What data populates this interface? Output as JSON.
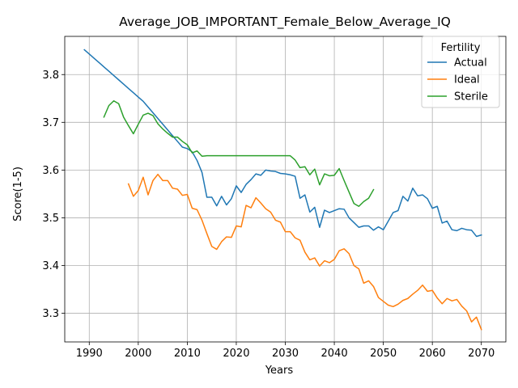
{
  "chart_data": {
    "type": "line",
    "title": "Average_JOB_IMPORTANT_Female_Below_Average_IQ",
    "xlabel": "Years",
    "ylabel": "Score(1-5)",
    "xlim": [
      1985,
      2075
    ],
    "ylim": [
      3.24,
      3.88
    ],
    "xticks": [
      1990,
      2000,
      2010,
      2020,
      2030,
      2040,
      2050,
      2060,
      2070
    ],
    "yticks": [
      3.3,
      3.4,
      3.5,
      3.6,
      3.7,
      3.8
    ],
    "ytick_labels": [
      "3.3",
      "3.4",
      "3.5",
      "3.6",
      "3.7",
      "3.8"
    ],
    "grid": true,
    "legend": {
      "title": "Fertility",
      "placement": "top-right"
    },
    "series": [
      {
        "name": "Actual",
        "color": "#1f77b4",
        "points": [
          [
            1989,
            3.852
          ],
          [
            1990,
            3.843
          ],
          [
            1991,
            3.834
          ],
          [
            1992,
            3.825
          ],
          [
            1993,
            3.816
          ],
          [
            1994,
            3.807
          ],
          [
            1995,
            3.798
          ],
          [
            1996,
            3.789
          ],
          [
            1997,
            3.78
          ],
          [
            1998,
            3.771
          ],
          [
            1999,
            3.762
          ],
          [
            2000,
            3.753
          ],
          [
            2001,
            3.744
          ],
          [
            2002,
            3.732
          ],
          [
            2003,
            3.72
          ],
          [
            2004,
            3.708
          ],
          [
            2005,
            3.696
          ],
          [
            2006,
            3.684
          ],
          [
            2007,
            3.672
          ],
          [
            2008,
            3.66
          ],
          [
            2009,
            3.648
          ],
          [
            2010,
            3.645
          ],
          [
            2011,
            3.638
          ],
          [
            2012,
            3.62
          ],
          [
            2013,
            3.595
          ],
          [
            2014,
            3.543
          ],
          [
            2015,
            3.543
          ],
          [
            2016,
            3.525
          ],
          [
            2017,
            3.545
          ],
          [
            2018,
            3.527
          ],
          [
            2019,
            3.54
          ],
          [
            2020,
            3.567
          ],
          [
            2021,
            3.553
          ],
          [
            2022,
            3.57
          ],
          [
            2023,
            3.58
          ],
          [
            2024,
            3.592
          ],
          [
            2025,
            3.589
          ],
          [
            2026,
            3.6
          ],
          [
            2027,
            3.598
          ],
          [
            2028,
            3.597
          ],
          [
            2029,
            3.593
          ],
          [
            2030,
            3.592
          ],
          [
            2031,
            3.59
          ],
          [
            2032,
            3.587
          ],
          [
            2033,
            3.541
          ],
          [
            2034,
            3.548
          ],
          [
            2035,
            3.512
          ],
          [
            2036,
            3.522
          ],
          [
            2037,
            3.48
          ],
          [
            2038,
            3.516
          ],
          [
            2039,
            3.511
          ],
          [
            2040,
            3.515
          ],
          [
            2041,
            3.519
          ],
          [
            2042,
            3.518
          ],
          [
            2043,
            3.5
          ],
          [
            2044,
            3.49
          ],
          [
            2045,
            3.48
          ],
          [
            2046,
            3.483
          ],
          [
            2047,
            3.483
          ],
          [
            2048,
            3.474
          ],
          [
            2049,
            3.481
          ],
          [
            2050,
            3.475
          ],
          [
            2051,
            3.493
          ],
          [
            2052,
            3.511
          ],
          [
            2053,
            3.515
          ],
          [
            2054,
            3.545
          ],
          [
            2055,
            3.535
          ],
          [
            2056,
            3.562
          ],
          [
            2057,
            3.546
          ],
          [
            2058,
            3.548
          ],
          [
            2059,
            3.54
          ],
          [
            2060,
            3.52
          ],
          [
            2061,
            3.524
          ],
          [
            2062,
            3.489
          ],
          [
            2063,
            3.493
          ],
          [
            2064,
            3.475
          ],
          [
            2065,
            3.473
          ],
          [
            2066,
            3.478
          ],
          [
            2067,
            3.475
          ],
          [
            2068,
            3.474
          ],
          [
            2069,
            3.461
          ],
          [
            2070,
            3.464
          ]
        ]
      },
      {
        "name": "Ideal",
        "color": "#ff7f0e",
        "points": [
          [
            1998,
            3.571
          ],
          [
            1999,
            3.545
          ],
          [
            2000,
            3.557
          ],
          [
            2001,
            3.585
          ],
          [
            2002,
            3.548
          ],
          [
            2003,
            3.578
          ],
          [
            2004,
            3.591
          ],
          [
            2005,
            3.578
          ],
          [
            2006,
            3.578
          ],
          [
            2007,
            3.562
          ],
          [
            2008,
            3.56
          ],
          [
            2009,
            3.547
          ],
          [
            2010,
            3.549
          ],
          [
            2011,
            3.52
          ],
          [
            2012,
            3.517
          ],
          [
            2013,
            3.495
          ],
          [
            2014,
            3.467
          ],
          [
            2015,
            3.44
          ],
          [
            2016,
            3.434
          ],
          [
            2017,
            3.45
          ],
          [
            2018,
            3.46
          ],
          [
            2019,
            3.459
          ],
          [
            2020,
            3.483
          ],
          [
            2021,
            3.481
          ],
          [
            2022,
            3.526
          ],
          [
            2023,
            3.521
          ],
          [
            2024,
            3.542
          ],
          [
            2025,
            3.531
          ],
          [
            2026,
            3.519
          ],
          [
            2027,
            3.512
          ],
          [
            2028,
            3.495
          ],
          [
            2029,
            3.491
          ],
          [
            2030,
            3.471
          ],
          [
            2031,
            3.471
          ],
          [
            2032,
            3.458
          ],
          [
            2033,
            3.453
          ],
          [
            2034,
            3.428
          ],
          [
            2035,
            3.412
          ],
          [
            2036,
            3.416
          ],
          [
            2037,
            3.399
          ],
          [
            2038,
            3.41
          ],
          [
            2039,
            3.406
          ],
          [
            2040,
            3.413
          ],
          [
            2041,
            3.431
          ],
          [
            2042,
            3.435
          ],
          [
            2043,
            3.425
          ],
          [
            2044,
            3.4
          ],
          [
            2045,
            3.393
          ],
          [
            2046,
            3.363
          ],
          [
            2047,
            3.368
          ],
          [
            2048,
            3.356
          ],
          [
            2049,
            3.333
          ],
          [
            2050,
            3.325
          ],
          [
            2051,
            3.317
          ],
          [
            2052,
            3.314
          ],
          [
            2053,
            3.319
          ],
          [
            2054,
            3.327
          ],
          [
            2055,
            3.331
          ],
          [
            2056,
            3.34
          ],
          [
            2057,
            3.348
          ],
          [
            2058,
            3.359
          ],
          [
            2059,
            3.346
          ],
          [
            2060,
            3.348
          ],
          [
            2061,
            3.332
          ],
          [
            2062,
            3.32
          ],
          [
            2063,
            3.331
          ],
          [
            2064,
            3.326
          ],
          [
            2065,
            3.329
          ],
          [
            2066,
            3.315
          ],
          [
            2067,
            3.305
          ],
          [
            2068,
            3.282
          ],
          [
            2069,
            3.292
          ],
          [
            2070,
            3.266
          ]
        ]
      },
      {
        "name": "Sterile",
        "color": "#2ca02c",
        "points": [
          [
            1993,
            3.711
          ],
          [
            1994,
            3.735
          ],
          [
            1995,
            3.745
          ],
          [
            1996,
            3.739
          ],
          [
            1997,
            3.711
          ],
          [
            1998,
            3.693
          ],
          [
            1999,
            3.676
          ],
          [
            2000,
            3.696
          ],
          [
            2001,
            3.715
          ],
          [
            2002,
            3.719
          ],
          [
            2003,
            3.714
          ],
          [
            2004,
            3.697
          ],
          [
            2005,
            3.686
          ],
          [
            2006,
            3.677
          ],
          [
            2007,
            3.669
          ],
          [
            2008,
            3.669
          ],
          [
            2009,
            3.66
          ],
          [
            2010,
            3.653
          ],
          [
            2011,
            3.636
          ],
          [
            2012,
            3.64
          ],
          [
            2013,
            3.629
          ],
          [
            2014,
            3.63
          ],
          [
            2015,
            3.63
          ],
          [
            2016,
            3.63
          ],
          [
            2017,
            3.63
          ],
          [
            2018,
            3.63
          ],
          [
            2019,
            3.63
          ],
          [
            2020,
            3.63
          ],
          [
            2021,
            3.63
          ],
          [
            2022,
            3.63
          ],
          [
            2023,
            3.63
          ],
          [
            2024,
            3.63
          ],
          [
            2025,
            3.63
          ],
          [
            2026,
            3.63
          ],
          [
            2027,
            3.63
          ],
          [
            2028,
            3.63
          ],
          [
            2029,
            3.63
          ],
          [
            2030,
            3.63
          ],
          [
            2031,
            3.63
          ],
          [
            2032,
            3.621
          ],
          [
            2033,
            3.605
          ],
          [
            2034,
            3.607
          ],
          [
            2035,
            3.59
          ],
          [
            2036,
            3.602
          ],
          [
            2037,
            3.569
          ],
          [
            2038,
            3.592
          ],
          [
            2039,
            3.588
          ],
          [
            2040,
            3.589
          ],
          [
            2041,
            3.603
          ],
          [
            2042,
            3.578
          ],
          [
            2043,
            3.554
          ],
          [
            2044,
            3.53
          ],
          [
            2045,
            3.524
          ],
          [
            2046,
            3.534
          ],
          [
            2047,
            3.541
          ],
          [
            2048,
            3.559
          ]
        ]
      }
    ]
  }
}
